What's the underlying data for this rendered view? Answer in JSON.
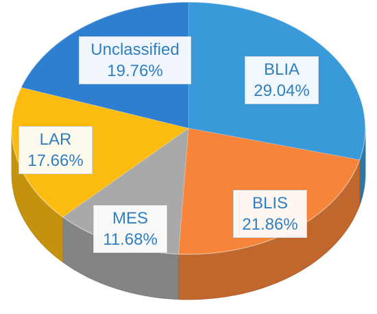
{
  "chart_data": {
    "type": "pie",
    "style": "3d",
    "title": "",
    "categories": [
      "BLIA",
      "BLIS",
      "MES",
      "LAR",
      "Unclassified"
    ],
    "values": [
      29.04,
      21.86,
      11.68,
      17.66,
      19.76
    ],
    "value_labels": [
      "29.04%",
      "21.86%",
      "11.68%",
      "17.66%",
      "19.76%"
    ],
    "colors": [
      "#3a99d8",
      "#f6843a",
      "#a9a9a9",
      "#fbbb10",
      "#2f7fd0"
    ],
    "label_color": "#2f7fc0",
    "legend": "none",
    "start_angle": "12 o'clock",
    "direction": "clockwise"
  }
}
